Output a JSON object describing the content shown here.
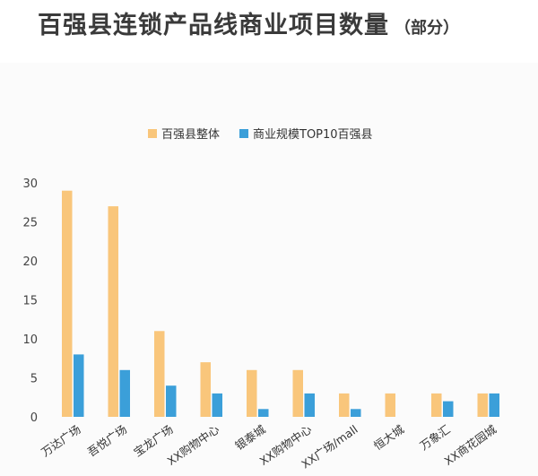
{
  "title": "百强县连锁产品线商业项目数量",
  "subtitle": "（部分）",
  "chart_data": {
    "type": "bar",
    "categories": [
      "万达广场",
      "吾悦广场",
      "宝龙广场",
      "XX购物中心",
      "银泰城",
      "XX购物中心",
      "XX广场/mall",
      "恒大城",
      "万象汇",
      "XX商花园城"
    ],
    "series": [
      {
        "name": "百强县整体",
        "color": "#f9c67b",
        "values": [
          29,
          27,
          11,
          7,
          6,
          6,
          3,
          3,
          3,
          3
        ]
      },
      {
        "name": "商业规模TOP10百强县",
        "color": "#3b9fd9",
        "values": [
          8,
          6,
          4,
          3,
          1,
          3,
          1,
          0,
          2,
          3
        ]
      }
    ],
    "yticks": [
      "0",
      "5",
      "10",
      "15",
      "20",
      "25",
      "30"
    ],
    "ylim": [
      0,
      30
    ],
    "grid": false,
    "legend": "top-center"
  }
}
